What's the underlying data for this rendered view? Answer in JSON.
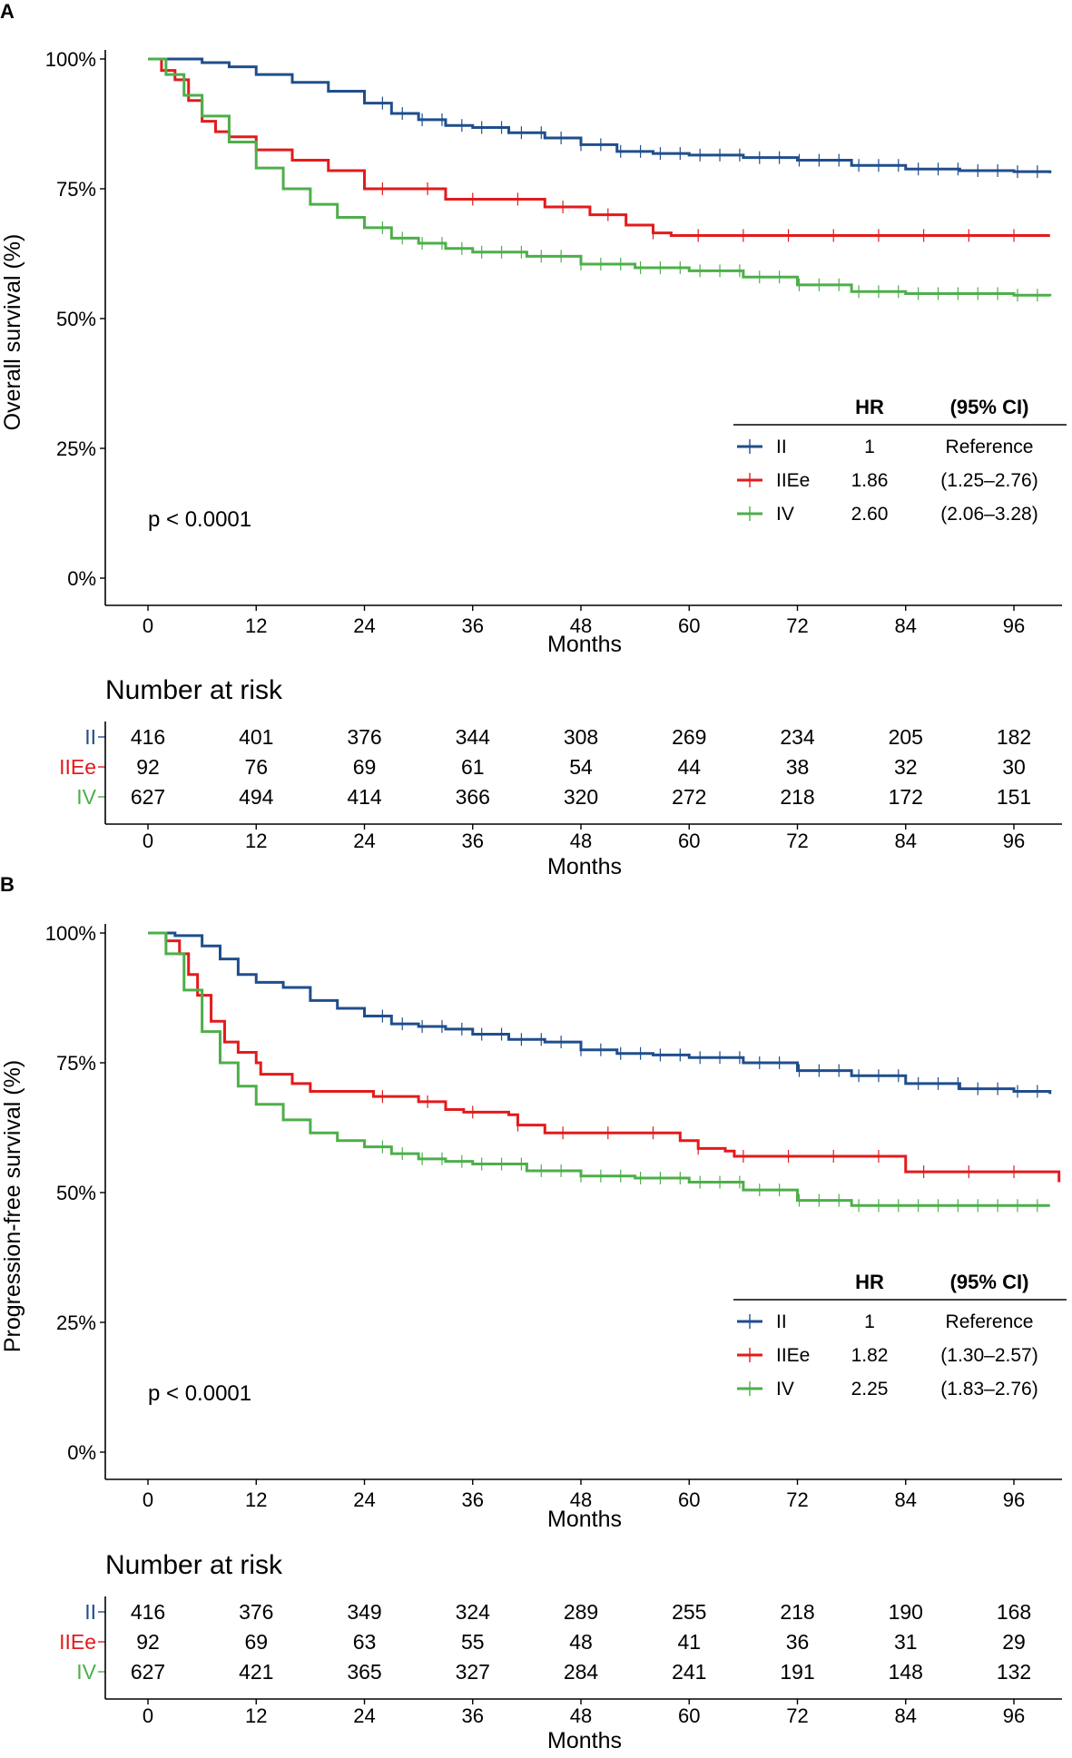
{
  "colors": {
    "II": "#1f4e8c",
    "IIEe": "#e41a1c",
    "IV": "#4daf4a"
  },
  "chart_data": [
    {
      "panel": "A",
      "type": "line",
      "subtype": "kaplan-meier",
      "ylabel": "Overall survival (%)",
      "xlabel": "Months",
      "xlim": [
        0,
        100
      ],
      "ylim": [
        0,
        100
      ],
      "x_ticks": [
        "0",
        "12",
        "24",
        "36",
        "48",
        "60",
        "72",
        "84",
        "96"
      ],
      "y_ticks": [
        "0%",
        "25%",
        "50%",
        "75%",
        "100%"
      ],
      "p_value": "p < 0.0001",
      "legend_header": {
        "hr": "HR",
        "ci": "(95% CI)"
      },
      "series": [
        {
          "name": "II",
          "hr": "1",
          "ci": "Reference",
          "points": [
            [
              0,
              100
            ],
            [
              4,
              100
            ],
            [
              6,
              99.3
            ],
            [
              9,
              98.5
            ],
            [
              12,
              97
            ],
            [
              16,
              95.5
            ],
            [
              20,
              93.8
            ],
            [
              24,
              91.5
            ],
            [
              27,
              89.5
            ],
            [
              30,
              88.3
            ],
            [
              33,
              87.2
            ],
            [
              36,
              86.8
            ],
            [
              40,
              85.8
            ],
            [
              44,
              84.8
            ],
            [
              48,
              83.5
            ],
            [
              52,
              82.2
            ],
            [
              56,
              81.8
            ],
            [
              60,
              81.5
            ],
            [
              66,
              81
            ],
            [
              72,
              80.5
            ],
            [
              78,
              79.5
            ],
            [
              84,
              78.8
            ],
            [
              90,
              78.5
            ],
            [
              96,
              78.3
            ],
            [
              100,
              78
            ]
          ]
        },
        {
          "name": "IIEe",
          "hr": "1.86",
          "ci": "(1.25–2.76)",
          "points": [
            [
              0,
              100
            ],
            [
              1.5,
              97.8
            ],
            [
              3,
              96
            ],
            [
              4.5,
              92
            ],
            [
              6,
              88
            ],
            [
              7.5,
              86
            ],
            [
              9,
              85
            ],
            [
              12,
              85
            ],
            [
              12,
              82.5
            ],
            [
              16,
              80.5
            ],
            [
              20,
              78.5
            ],
            [
              24,
              78.5
            ],
            [
              24,
              75
            ],
            [
              30,
              75
            ],
            [
              33,
              73
            ],
            [
              44,
              73
            ],
            [
              44,
              71.5
            ],
            [
              49,
              70
            ],
            [
              53,
              68
            ],
            [
              56,
              66.5
            ],
            [
              58,
              66
            ],
            [
              100,
              66
            ]
          ]
        },
        {
          "name": "IV",
          "hr": "2.60",
          "ci": "(2.06–3.28)",
          "points": [
            [
              0,
              100
            ],
            [
              2,
              97
            ],
            [
              4,
              93
            ],
            [
              6,
              89
            ],
            [
              9,
              84
            ],
            [
              12,
              79
            ],
            [
              15,
              75
            ],
            [
              18,
              72
            ],
            [
              21,
              69.5
            ],
            [
              24,
              67.5
            ],
            [
              27,
              65.5
            ],
            [
              30,
              64.5
            ],
            [
              33,
              63.5
            ],
            [
              36,
              62.8
            ],
            [
              42,
              62
            ],
            [
              48,
              60.5
            ],
            [
              54,
              59.8
            ],
            [
              60,
              59.2
            ],
            [
              66,
              58
            ],
            [
              72,
              56.5
            ],
            [
              78,
              55.2
            ],
            [
              84,
              54.8
            ],
            [
              96,
              54.5
            ],
            [
              100,
              54.3
            ]
          ]
        }
      ],
      "risk_table": {
        "title": "Number at risk",
        "xlabel": "Months",
        "rows": [
          {
            "label": "II",
            "values": [
              "416",
              "401",
              "376",
              "344",
              "308",
              "269",
              "234",
              "205",
              "182"
            ]
          },
          {
            "label": "IIEe",
            "values": [
              "92",
              "76",
              "69",
              "61",
              "54",
              "44",
              "38",
              "32",
              "30"
            ]
          },
          {
            "label": "IV",
            "values": [
              "627",
              "494",
              "414",
              "366",
              "320",
              "272",
              "218",
              "172",
              "151"
            ]
          }
        ]
      }
    },
    {
      "panel": "B",
      "type": "line",
      "subtype": "kaplan-meier",
      "ylabel": "Progression-free survival (%)",
      "xlabel": "Months",
      "xlim": [
        0,
        100
      ],
      "ylim": [
        0,
        100
      ],
      "x_ticks": [
        "0",
        "12",
        "24",
        "36",
        "48",
        "60",
        "72",
        "84",
        "96"
      ],
      "y_ticks": [
        "0%",
        "25%",
        "50%",
        "75%",
        "100%"
      ],
      "p_value": "p < 0.0001",
      "legend_header": {
        "hr": "HR",
        "ci": "(95% CI)"
      },
      "series": [
        {
          "name": "II",
          "hr": "1",
          "ci": "Reference",
          "points": [
            [
              0,
              100
            ],
            [
              3,
              99.5
            ],
            [
              6,
              97.5
            ],
            [
              8,
              95
            ],
            [
              10,
              92
            ],
            [
              12,
              90.5
            ],
            [
              15,
              89.5
            ],
            [
              18,
              87
            ],
            [
              21,
              85.5
            ],
            [
              24,
              84
            ],
            [
              27,
              82.5
            ],
            [
              30,
              82
            ],
            [
              33,
              81.5
            ],
            [
              36,
              80.5
            ],
            [
              40,
              79.5
            ],
            [
              44,
              79
            ],
            [
              48,
              77.5
            ],
            [
              52,
              76.8
            ],
            [
              56,
              76.5
            ],
            [
              60,
              76
            ],
            [
              66,
              75
            ],
            [
              72,
              73.5
            ],
            [
              78,
              72.5
            ],
            [
              84,
              71
            ],
            [
              90,
              70
            ],
            [
              96,
              69.5
            ],
            [
              100,
              69
            ]
          ]
        },
        {
          "name": "IIEe",
          "hr": "1.82",
          "ci": "(1.30–2.57)",
          "points": [
            [
              0,
              100
            ],
            [
              2,
              98.5
            ],
            [
              3.5,
              96
            ],
            [
              4.5,
              92
            ],
            [
              5.5,
              88
            ],
            [
              7,
              83
            ],
            [
              8.5,
              79
            ],
            [
              10,
              77
            ],
            [
              12,
              75
            ],
            [
              12.5,
              72.8
            ],
            [
              16,
              71
            ],
            [
              18,
              69.5
            ],
            [
              22,
              69.5
            ],
            [
              25,
              68.5
            ],
            [
              30,
              67.5
            ],
            [
              33,
              66
            ],
            [
              35,
              65.5
            ],
            [
              40,
              65
            ],
            [
              41,
              63
            ],
            [
              44,
              61.5
            ],
            [
              50,
              61.5
            ],
            [
              58,
              61.5
            ],
            [
              59,
              60
            ],
            [
              61,
              58.5
            ],
            [
              64,
              58
            ],
            [
              65,
              57
            ],
            [
              70,
              57
            ],
            [
              83,
              57
            ],
            [
              84,
              54
            ],
            [
              100,
              54
            ],
            [
              101,
              52
            ]
          ]
        },
        {
          "name": "IV",
          "hr": "2.25",
          "ci": "(1.83–2.76)",
          "points": [
            [
              0,
              100
            ],
            [
              2,
              96
            ],
            [
              4,
              89
            ],
            [
              6,
              81
            ],
            [
              8,
              75
            ],
            [
              10,
              70.5
            ],
            [
              12,
              67
            ],
            [
              15,
              64
            ],
            [
              18,
              61.5
            ],
            [
              21,
              60
            ],
            [
              24,
              58.8
            ],
            [
              27,
              57.5
            ],
            [
              30,
              56.5
            ],
            [
              33,
              56
            ],
            [
              36,
              55.5
            ],
            [
              42,
              54.2
            ],
            [
              48,
              53.2
            ],
            [
              54,
              52.8
            ],
            [
              60,
              52
            ],
            [
              66,
              50.5
            ],
            [
              72,
              48.5
            ],
            [
              78,
              47.5
            ],
            [
              84,
              47.5
            ],
            [
              96,
              47.5
            ],
            [
              100,
              47.5
            ]
          ]
        }
      ],
      "risk_table": {
        "title": "Number at risk",
        "xlabel": "Months",
        "rows": [
          {
            "label": "II",
            "values": [
              "416",
              "376",
              "349",
              "324",
              "289",
              "255",
              "218",
              "190",
              "168"
            ]
          },
          {
            "label": "IIEe",
            "values": [
              "92",
              "69",
              "63",
              "55",
              "48",
              "41",
              "36",
              "31",
              "29"
            ]
          },
          {
            "label": "IV",
            "values": [
              "627",
              "421",
              "365",
              "327",
              "284",
              "241",
              "191",
              "148",
              "132"
            ]
          }
        ]
      }
    }
  ]
}
